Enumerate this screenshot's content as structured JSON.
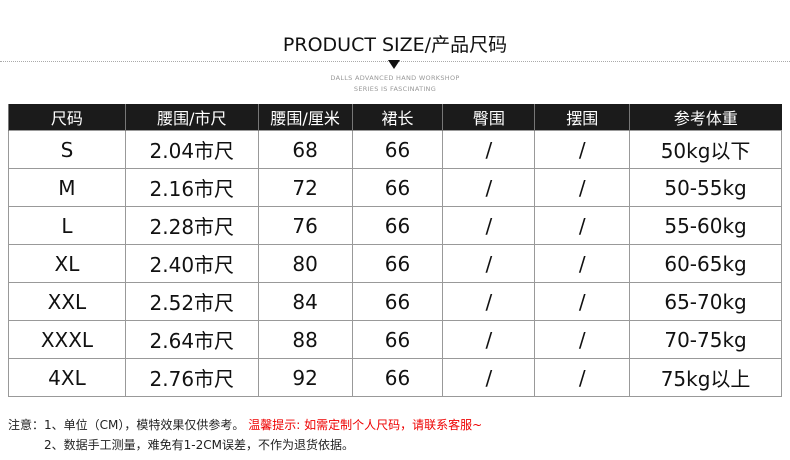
{
  "header": {
    "title": "PRODUCT SIZE/产品尺码",
    "subtitle_line1": "DALLS ADVANCED HAND WORKSHOP",
    "subtitle_line2": "SERIES IS FASCINATING"
  },
  "table": {
    "columns": [
      "尺码",
      "腰围/市尺",
      "腰围/厘米",
      "裙长",
      "臀围",
      "摆围",
      "参考体重"
    ],
    "rows": [
      [
        "S",
        "2.04市尺",
        "68",
        "66",
        "/",
        "/",
        "50kg以下"
      ],
      [
        "M",
        "2.16市尺",
        "72",
        "66",
        "/",
        "/",
        "50-55kg"
      ],
      [
        "L",
        "2.28市尺",
        "76",
        "66",
        "/",
        "/",
        "55-60kg"
      ],
      [
        "XL",
        "2.40市尺",
        "80",
        "66",
        "/",
        "/",
        "60-65kg"
      ],
      [
        "XXL",
        "2.52市尺",
        "84",
        "66",
        "/",
        "/",
        "65-70kg"
      ],
      [
        "XXXL",
        "2.64市尺",
        "88",
        "66",
        "/",
        "/",
        "70-75kg"
      ],
      [
        "4XL",
        "2.76市尺",
        "92",
        "66",
        "/",
        "/",
        "75kg以上"
      ]
    ]
  },
  "notes": {
    "prefix": "注意：",
    "line1": "1、单位（CM），模特效果仅供参考。",
    "tip": "温馨提示: 如需定制个人尺码，请联系客服~",
    "line2": "2、数据手工测量，难免有1-2CM误差，不作为退货依据。"
  },
  "colors": {
    "header_bg": "#1b1b1b",
    "tip": "#ee0000"
  }
}
